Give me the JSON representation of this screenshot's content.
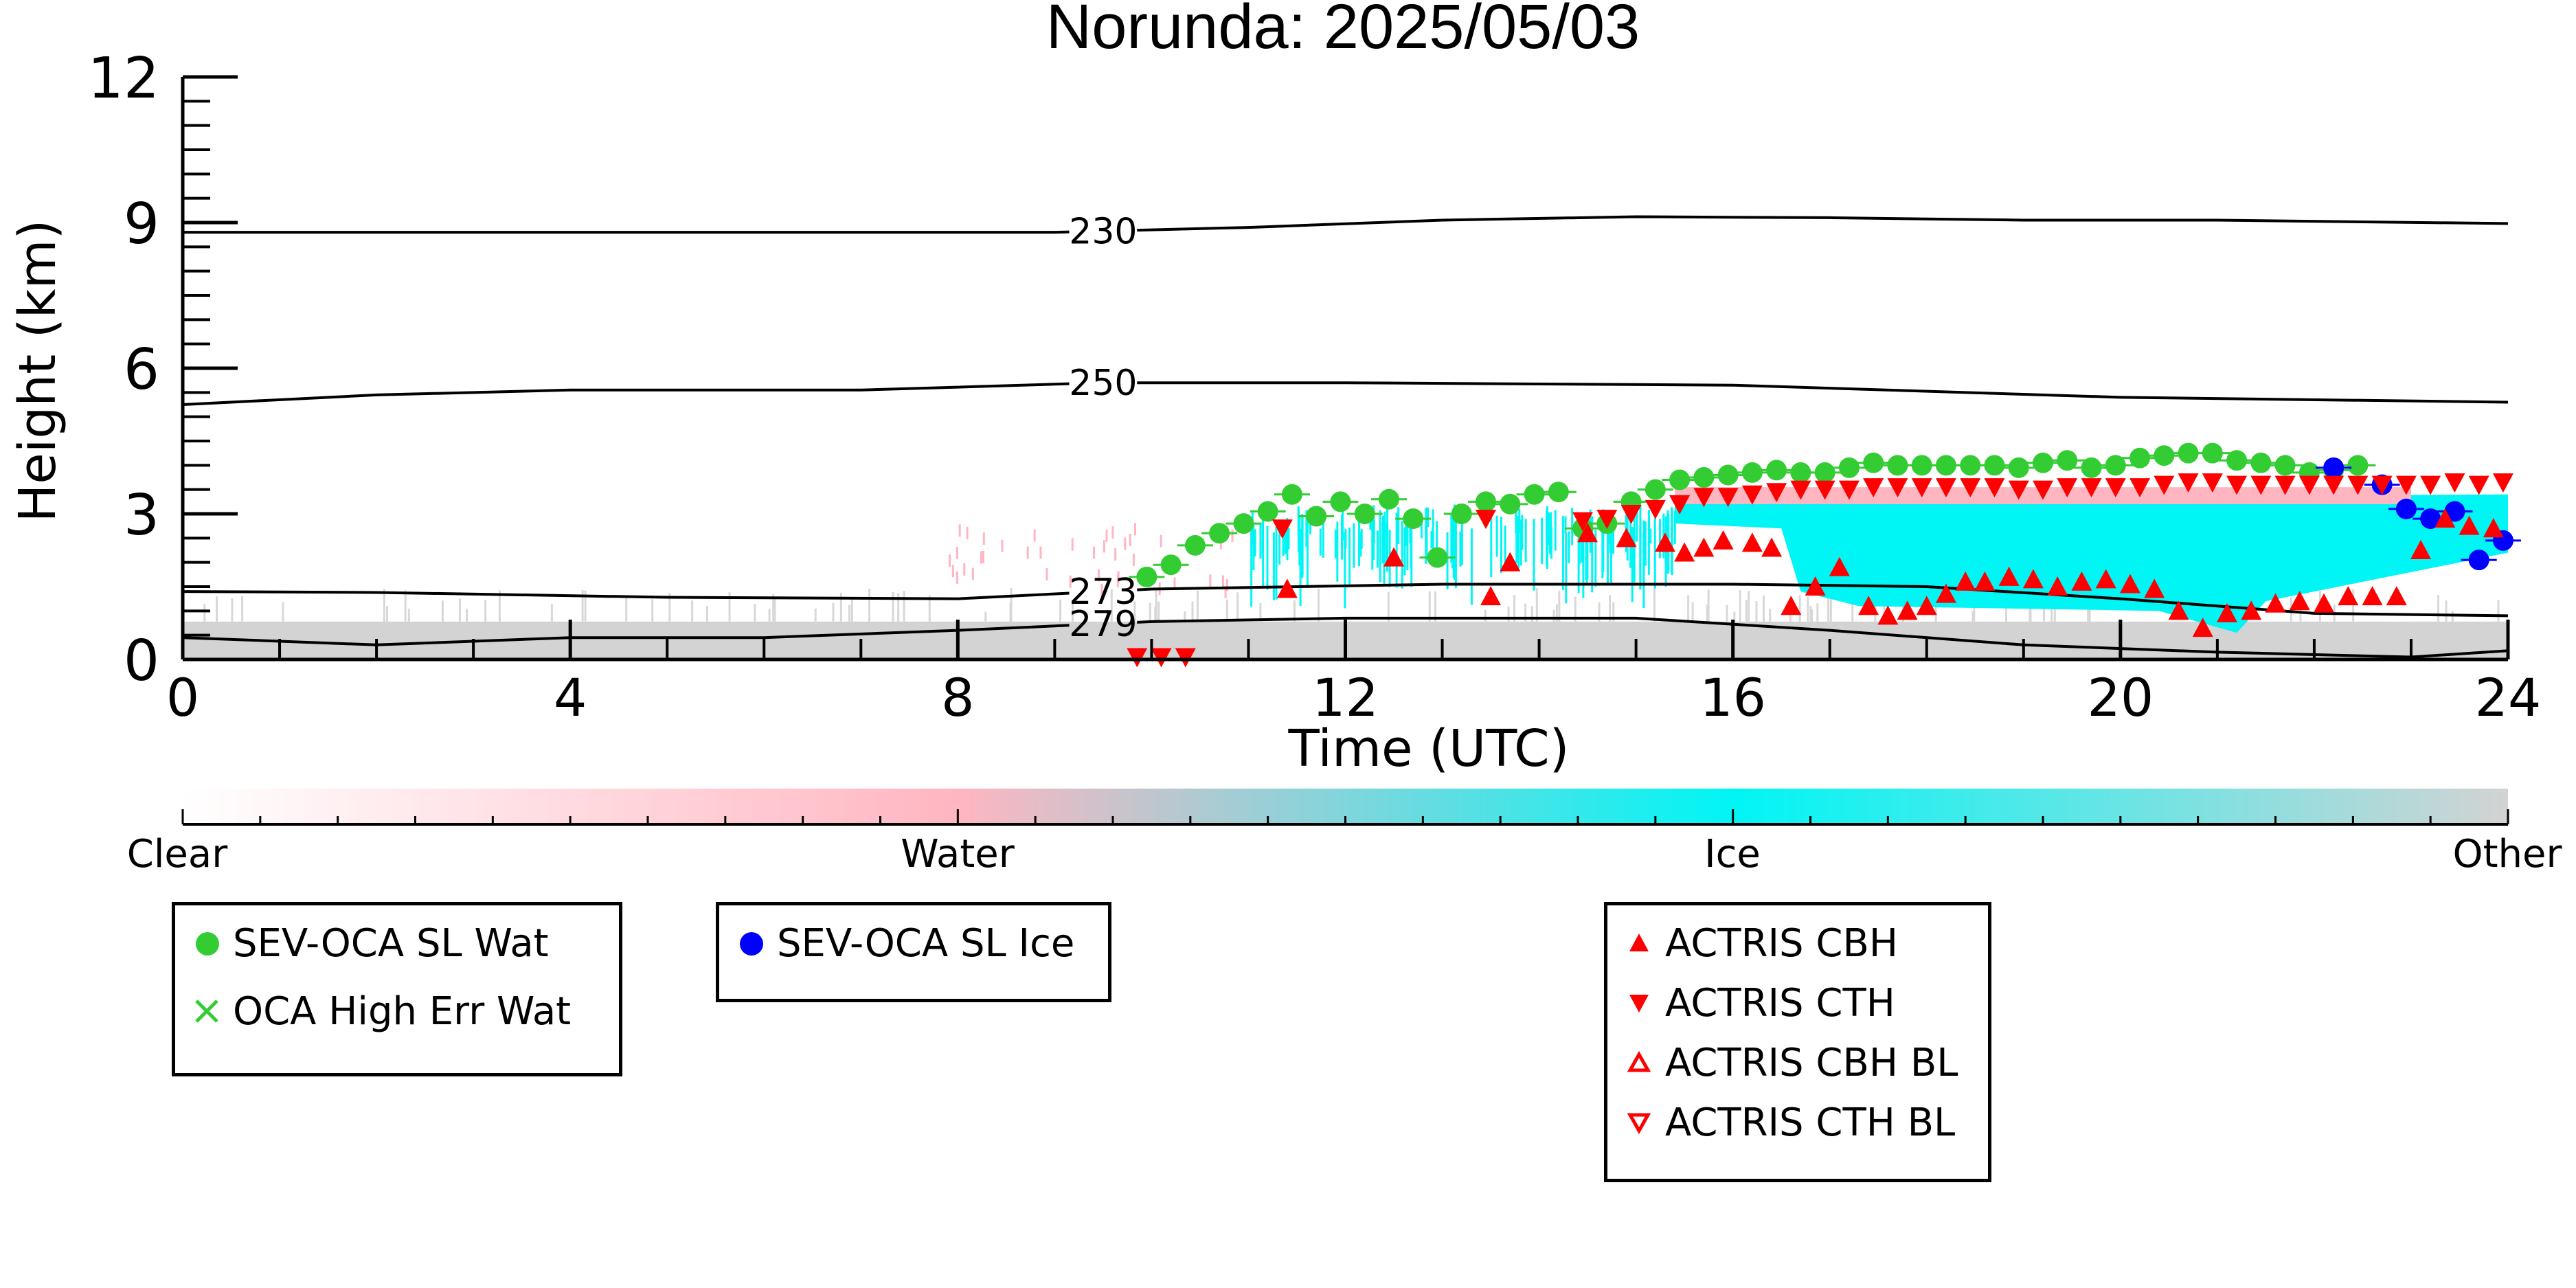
{
  "chart_data": {
    "type": "scatter",
    "title": "Norunda: 2025/05/03",
    "xlabel": "Time (UTC)",
    "ylabel": "Height (km)",
    "xlim": [
      0,
      24
    ],
    "ylim": [
      0,
      12
    ],
    "x_ticks": [
      "0",
      "4",
      "8",
      "12",
      "16",
      "20",
      "24"
    ],
    "y_ticks": [
      "0",
      "3",
      "6",
      "9",
      "12"
    ],
    "grid": false,
    "colorbar": {
      "labels": [
        "Clear",
        "Water",
        "Ice",
        "Other"
      ],
      "colors": [
        "#ffffff",
        "#ffb6c1",
        "#00f5f5",
        "#d3d3d3"
      ]
    },
    "contours": [
      {
        "label": "230",
        "points": [
          [
            0,
            8.8
          ],
          [
            9,
            8.8
          ],
          [
            11,
            8.9
          ],
          [
            13,
            9.05
          ],
          [
            15,
            9.12
          ],
          [
            17,
            9.1
          ],
          [
            19,
            9.05
          ],
          [
            21,
            9.05
          ],
          [
            24,
            8.98
          ]
        ]
      },
      {
        "label": "250",
        "points": [
          [
            0,
            5.25
          ],
          [
            2,
            5.45
          ],
          [
            4,
            5.55
          ],
          [
            7,
            5.55
          ],
          [
            9.5,
            5.7
          ],
          [
            12,
            5.7
          ],
          [
            16,
            5.65
          ],
          [
            20,
            5.4
          ],
          [
            24,
            5.3
          ]
        ]
      },
      {
        "label": "273",
        "points": [
          [
            0,
            1.4
          ],
          [
            2,
            1.38
          ],
          [
            5,
            1.28
          ],
          [
            8,
            1.25
          ],
          [
            10,
            1.45
          ],
          [
            13,
            1.55
          ],
          [
            16,
            1.55
          ],
          [
            18,
            1.5
          ],
          [
            20,
            1.25
          ],
          [
            22,
            0.95
          ],
          [
            24,
            0.9
          ]
        ]
      },
      {
        "label": "279",
        "points": [
          [
            0,
            0.45
          ],
          [
            2,
            0.3
          ],
          [
            4,
            0.45
          ],
          [
            6,
            0.45
          ],
          [
            8,
            0.6
          ],
          [
            10,
            0.78
          ],
          [
            12,
            0.85
          ],
          [
            15,
            0.85
          ],
          [
            17,
            0.6
          ],
          [
            19,
            0.3
          ],
          [
            21,
            0.15
          ],
          [
            23,
            0.05
          ],
          [
            24,
            0.18
          ]
        ]
      }
    ],
    "series": [
      {
        "name": "SEV-OCA SL Wat",
        "color": "#33cc33",
        "marker": "circle",
        "x": [
          9.95,
          10.2,
          10.45,
          10.7,
          10.95,
          11.2,
          11.45,
          11.7,
          11.95,
          12.2,
          12.45,
          12.7,
          12.95,
          13.2,
          13.45,
          13.7,
          13.95,
          14.2,
          14.45,
          14.7,
          14.95,
          15.2,
          15.45,
          15.7,
          15.95,
          16.2,
          16.45,
          16.7,
          16.95,
          17.2,
          17.45,
          17.7,
          17.95,
          18.2,
          18.45,
          18.7,
          18.95,
          19.2,
          19.45,
          19.7,
          19.95,
          20.2,
          20.45,
          20.7,
          20.95,
          21.2,
          21.45,
          21.7,
          21.95,
          22.2,
          22.45
        ],
        "y": [
          1.7,
          1.95,
          2.35,
          2.6,
          2.8,
          3.05,
          3.4,
          2.95,
          3.25,
          3.0,
          3.3,
          2.9,
          2.1,
          3.0,
          3.25,
          3.2,
          3.4,
          3.45,
          2.7,
          2.8,
          3.25,
          3.5,
          3.7,
          3.75,
          3.8,
          3.85,
          3.9,
          3.85,
          3.85,
          3.95,
          4.05,
          4.0,
          4.0,
          4.0,
          4.0,
          4.0,
          3.95,
          4.05,
          4.1,
          3.95,
          4.0,
          4.15,
          4.2,
          4.25,
          4.25,
          4.1,
          4.05,
          4.0,
          3.85,
          3.9,
          4.0
        ]
      },
      {
        "name": "OCA High Err Wat",
        "color": "#33cc33",
        "marker": "x",
        "x": [],
        "y": []
      },
      {
        "name": "SEV-OCA SL Ice",
        "color": "#0000ff",
        "marker": "circle",
        "x": [
          22.2,
          22.7,
          22.95,
          23.2,
          23.45,
          23.7,
          23.95
        ],
        "y": [
          3.95,
          3.6,
          3.1,
          2.9,
          3.05,
          2.05,
          2.45
        ]
      },
      {
        "name": "ACTRIS CBH",
        "color": "#ff0000",
        "marker": "triangle-up",
        "x": [
          11.4,
          12.5,
          13.5,
          13.7,
          14.5,
          14.9,
          15.3,
          15.5,
          15.7,
          15.9,
          16.2,
          16.4,
          16.6,
          16.85,
          17.1,
          17.4,
          17.6,
          17.8,
          18.0,
          18.2,
          18.4,
          18.6,
          18.85,
          19.1,
          19.35,
          19.6,
          19.85,
          20.1,
          20.35,
          20.6,
          20.85,
          21.1,
          21.35,
          21.6,
          21.85,
          22.1,
          22.35,
          22.6,
          22.85,
          23.1,
          23.35,
          23.6,
          23.85
        ],
        "y": [
          1.45,
          2.1,
          1.3,
          2.0,
          2.6,
          2.5,
          2.4,
          2.2,
          2.3,
          2.45,
          2.4,
          2.3,
          1.1,
          1.5,
          1.9,
          1.1,
          0.9,
          1.0,
          1.1,
          1.35,
          1.6,
          1.6,
          1.7,
          1.65,
          1.5,
          1.6,
          1.65,
          1.55,
          1.45,
          1.0,
          0.65,
          0.95,
          1.0,
          1.15,
          1.2,
          1.15,
          1.3,
          1.3,
          1.3,
          2.25,
          2.9,
          2.75,
          2.7
        ]
      },
      {
        "name": "ACTRIS CTH",
        "color": "#ff0000",
        "marker": "triangle-down",
        "x": [
          9.85,
          10.1,
          10.35,
          11.35,
          13.45,
          14.45,
          14.7,
          14.95,
          15.2,
          15.45,
          15.7,
          15.95,
          16.2,
          16.45,
          16.7,
          16.95,
          17.2,
          17.45,
          17.7,
          17.95,
          18.2,
          18.45,
          18.7,
          18.95,
          19.2,
          19.45,
          19.7,
          19.95,
          20.2,
          20.45,
          20.7,
          20.95,
          21.2,
          21.45,
          21.7,
          21.95,
          22.2,
          22.45,
          22.7,
          22.95,
          23.2,
          23.45,
          23.7,
          23.95
        ],
        "y": [
          0.05,
          0.05,
          0.05,
          2.7,
          2.9,
          2.85,
          2.9,
          3.0,
          3.1,
          3.2,
          3.35,
          3.35,
          3.4,
          3.45,
          3.5,
          3.5,
          3.5,
          3.55,
          3.55,
          3.55,
          3.55,
          3.55,
          3.55,
          3.5,
          3.5,
          3.55,
          3.55,
          3.55,
          3.55,
          3.6,
          3.65,
          3.65,
          3.6,
          3.6,
          3.6,
          3.6,
          3.6,
          3.6,
          3.6,
          3.6,
          3.6,
          3.65,
          3.6,
          3.65
        ]
      },
      {
        "name": "ACTRIS CBH BL",
        "color": "#ff0000",
        "marker": "triangle-up-open",
        "x": [],
        "y": []
      },
      {
        "name": "ACTRIS CTH BL",
        "color": "#ff0000",
        "marker": "triangle-down-open",
        "x": [],
        "y": []
      }
    ]
  }
}
